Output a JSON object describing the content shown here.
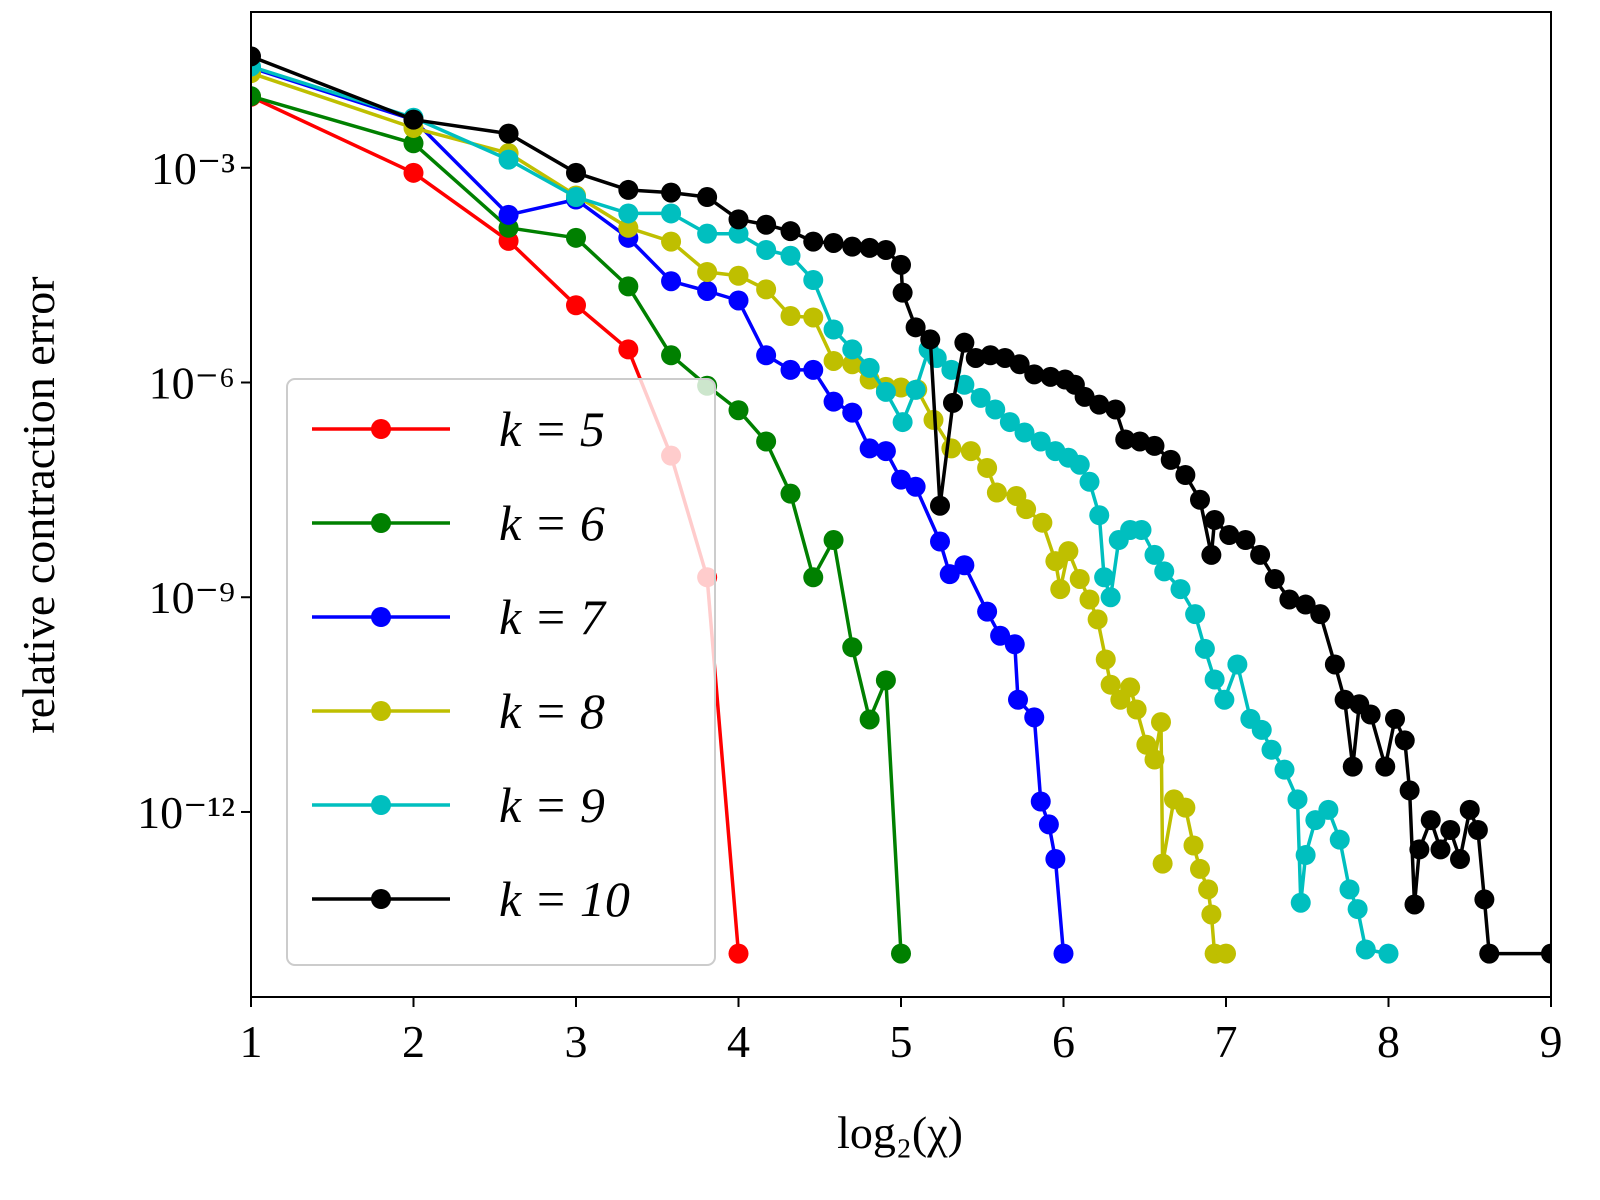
{
  "chart_data": {
    "type": "line",
    "xlabel": "log₂(χ)",
    "ylabel": "relative contraction error",
    "xlim": [
      1,
      9
    ],
    "xticks": [
      1,
      2,
      3,
      4,
      5,
      6,
      7,
      8,
      9
    ],
    "ylim": [
      2.6e-15,
      0.15
    ],
    "log_y": true,
    "yticks": [
      {
        "value": 0.001,
        "label": "10⁻³"
      },
      {
        "value": 1e-06,
        "label": "10⁻⁶"
      },
      {
        "value": 1e-09,
        "label": "10⁻⁹"
      },
      {
        "value": 1e-12,
        "label": "10⁻¹²"
      }
    ],
    "legend": "lower left",
    "series": [
      {
        "name": "k = 5",
        "color": "#ff0000",
        "x": [
          1,
          2,
          2.585,
          3,
          3.322,
          3.585,
          3.807,
          4
        ],
        "values": [
          0.0098,
          0.00085,
          9.5e-05,
          1.2e-05,
          2.9e-06,
          9.5e-08,
          1.9e-09,
          1.05e-14
        ]
      },
      {
        "name": "k = 6",
        "color": "#008000",
        "x": [
          1,
          2,
          2.585,
          3,
          3.322,
          3.585,
          3.807,
          4,
          4.17,
          4.32,
          4.46,
          4.585,
          4.7,
          4.807,
          4.907,
          5
        ],
        "values": [
          0.01,
          0.0022,
          0.000145,
          0.000105,
          2.2e-05,
          2.4e-06,
          9e-07,
          4.1e-07,
          1.5e-07,
          2.8e-08,
          1.9e-09,
          6.3e-09,
          2e-10,
          1.96e-11,
          6.9e-11,
          1.05e-14
        ]
      },
      {
        "name": "k = 7",
        "color": "#0000ff",
        "x": [
          1,
          2,
          2.585,
          3,
          3.322,
          3.585,
          3.807,
          4,
          4.17,
          4.32,
          4.46,
          4.585,
          4.7,
          4.807,
          4.907,
          5,
          5.09,
          5.24,
          5.3,
          5.39,
          5.53,
          5.61,
          5.7,
          5.72,
          5.82,
          5.86,
          5.91,
          5.95,
          6.0
        ],
        "values": [
          0.025,
          0.0047,
          0.00022,
          0.00036,
          0.000105,
          2.6e-05,
          1.9e-05,
          1.4e-05,
          2.4e-06,
          1.5e-06,
          1.5e-06,
          5.4e-07,
          3.8e-07,
          1.2e-07,
          1.1e-07,
          4.4e-08,
          3.5e-08,
          6e-09,
          2.1e-09,
          2.8e-09,
          6.3e-10,
          2.9e-10,
          2.2e-10,
          3.7e-11,
          2.1e-11,
          1.4e-12,
          6.7e-13,
          2.2e-13,
          1.05e-14
        ]
      },
      {
        "name": "k = 8",
        "color": "#bfbf00",
        "x": [
          1,
          2,
          2.585,
          3,
          3.322,
          3.585,
          3.807,
          4,
          4.17,
          4.32,
          4.46,
          4.585,
          4.7,
          4.807,
          4.907,
          5,
          5.1,
          5.2,
          5.31,
          5.43,
          5.53,
          5.59,
          5.71,
          5.77,
          5.87,
          5.95,
          5.98,
          6.03,
          6.1,
          6.16,
          6.21,
          6.26,
          6.29,
          6.35,
          6.41,
          6.45,
          6.51,
          6.56,
          6.6,
          6.61,
          6.68,
          6.75,
          6.8,
          6.84,
          6.89,
          6.91,
          6.93,
          7.0
        ],
        "values": [
          0.021,
          0.0036,
          0.0016,
          0.00041,
          0.000145,
          9.3e-05,
          3.5e-05,
          3.1e-05,
          2e-05,
          8.5e-06,
          8.1e-06,
          2e-06,
          1.8e-06,
          1.1e-06,
          8.7e-07,
          8.5e-07,
          8e-07,
          3e-07,
          1.2e-07,
          1.1e-07,
          6.4e-08,
          2.9e-08,
          2.6e-08,
          1.7e-08,
          1.1e-08,
          3.2e-09,
          1.3e-09,
          4.4e-09,
          1.8e-09,
          9.3e-10,
          4.9e-10,
          1.35e-10,
          6e-11,
          3.7e-11,
          5.5e-11,
          2.7e-11,
          8.7e-12,
          5.4e-12,
          1.8e-11,
          1.9e-13,
          1.5e-12,
          1.15e-12,
          3.4e-13,
          1.6e-13,
          8.3e-14,
          3.7e-14,
          1.05e-14,
          1.05e-14
        ]
      },
      {
        "name": "k = 9",
        "color": "#00bfbf",
        "x": [
          1,
          2,
          2.585,
          3,
          3.322,
          3.585,
          3.807,
          4,
          4.17,
          4.32,
          4.46,
          4.585,
          4.7,
          4.807,
          4.907,
          5.01,
          5.09,
          5.17,
          5.22,
          5.31,
          5.39,
          5.49,
          5.58,
          5.67,
          5.76,
          5.86,
          5.95,
          6.03,
          6.1,
          6.16,
          6.22,
          6.25,
          6.29,
          6.34,
          6.41,
          6.48,
          6.56,
          6.62,
          6.72,
          6.81,
          6.87,
          6.93,
          6.99,
          7.07,
          7.15,
          7.22,
          7.28,
          7.36,
          7.44,
          7.46,
          7.49,
          7.55,
          7.63,
          7.7,
          7.76,
          7.81,
          7.86,
          8.0
        ],
        "values": [
          0.026,
          0.005,
          0.0013,
          0.00039,
          0.00023,
          0.00023,
          0.00012,
          0.00012,
          7.1e-05,
          5.9e-05,
          2.7e-05,
          5.5e-06,
          2.9e-06,
          1.6e-06,
          7.4e-07,
          2.8e-07,
          7.9e-07,
          2.9e-06,
          2.2e-06,
          1.5e-06,
          9.3e-07,
          6.1e-07,
          4.2e-07,
          2.8e-07,
          2e-07,
          1.5e-07,
          1.1e-07,
          8.9e-08,
          7.1e-08,
          4.1e-08,
          1.4e-08,
          1.9e-09,
          1e-09,
          6.3e-09,
          8.7e-09,
          8.7e-09,
          3.9e-09,
          2.3e-09,
          1.3e-09,
          5.8e-10,
          1.9e-10,
          7.1e-11,
          3.7e-11,
          1.15e-10,
          2e-11,
          1.4e-11,
          7.4e-12,
          3.9e-12,
          1.5e-12,
          5.4e-14,
          2.5e-13,
          7.7e-13,
          1.07e-12,
          4.1e-13,
          8.3e-14,
          4.4e-14,
          1.2e-14,
          1.05e-14
        ]
      },
      {
        "name": "k = 10",
        "color": "#000000",
        "x": [
          1,
          2,
          2.585,
          3,
          3.322,
          3.585,
          3.807,
          4,
          4.17,
          4.32,
          4.46,
          4.585,
          4.7,
          4.807,
          4.907,
          5,
          5.01,
          5.09,
          5.18,
          5.24,
          5.32,
          5.39,
          5.46,
          5.55,
          5.64,
          5.73,
          5.82,
          5.92,
          6.01,
          6.07,
          6.13,
          6.22,
          6.32,
          6.38,
          6.47,
          6.56,
          6.66,
          6.75,
          6.84,
          6.91,
          6.93,
          7.02,
          7.12,
          7.21,
          7.3,
          7.39,
          7.49,
          7.58,
          7.67,
          7.73,
          7.78,
          7.82,
          7.89,
          7.98,
          8.04,
          8.1,
          8.13,
          8.16,
          8.19,
          8.26,
          8.32,
          8.38,
          8.44,
          8.5,
          8.55,
          8.59,
          8.62,
          9
        ],
        "values": [
          0.036,
          0.0047,
          0.003,
          0.00085,
          0.00049,
          0.00045,
          0.00039,
          0.00019,
          0.00016,
          0.00013,
          9.3e-05,
          8.9e-05,
          7.9e-05,
          7.6e-05,
          7.1e-05,
          4.4e-05,
          1.8e-05,
          5.9e-06,
          4e-06,
          1.9e-08,
          5.2e-07,
          3.6e-06,
          2.2e-06,
          2.4e-06,
          2.2e-06,
          1.8e-06,
          1.3e-06,
          1.2e-06,
          1.1e-06,
          9.3e-07,
          6.3e-07,
          4.9e-07,
          4.2e-07,
          1.6e-07,
          1.5e-07,
          1.3e-07,
          8.3e-08,
          5.1e-08,
          2.3e-08,
          3.9e-09,
          1.2e-08,
          7.4e-09,
          6.3e-09,
          3.9e-09,
          1.8e-09,
          9.3e-10,
          7.9e-10,
          5.8e-10,
          1.15e-10,
          3.7e-11,
          4.3e-12,
          3.2e-11,
          2.3e-11,
          4.3e-12,
          2e-11,
          1e-11,
          2e-12,
          5.1e-14,
          3e-13,
          7.7e-13,
          3e-13,
          5.6e-13,
          2.2e-13,
          1.07e-12,
          5.6e-13,
          6e-14,
          1.05e-14,
          1.05e-14
        ]
      }
    ]
  }
}
